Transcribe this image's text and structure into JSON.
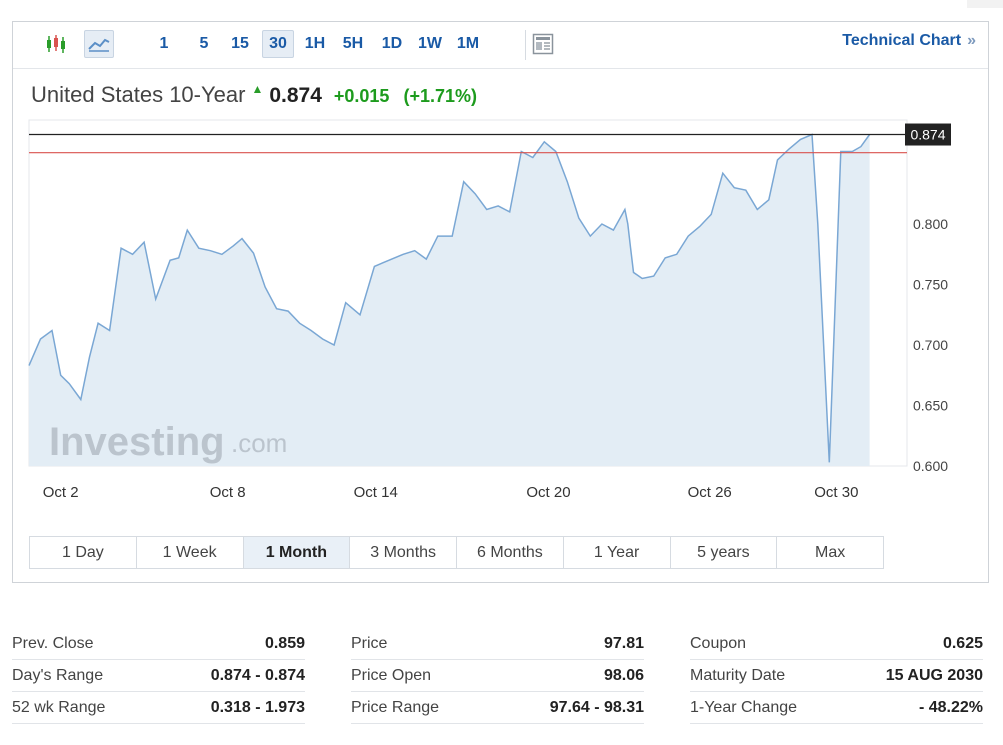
{
  "toolbar": {
    "timeframes": [
      {
        "label": "1",
        "active": false
      },
      {
        "label": "5",
        "active": false
      },
      {
        "label": "15",
        "active": false
      },
      {
        "label": "30",
        "active": true
      },
      {
        "label": "1H",
        "active": false
      },
      {
        "label": "5H",
        "active": false
      },
      {
        "label": "1D",
        "active": false
      },
      {
        "label": "1W",
        "active": false
      },
      {
        "label": "1M",
        "active": false
      }
    ],
    "technical_chart": "Technical Chart",
    "technical_chart_arrow": "»"
  },
  "quote": {
    "instrument": "United States 10-Year",
    "last": "0.874",
    "change": "+0.015",
    "change_pct": "(+1.71%)"
  },
  "colors": {
    "line": "#7aa7d4",
    "area": "#e3edf5",
    "prev_close_line": "#d9534f",
    "last_line": "#222222",
    "up": "#1d9b1d",
    "link": "#1a5aa6"
  },
  "chart_data": {
    "type": "area",
    "watermark": "Investing.com",
    "ylim": [
      0.6,
      0.886
    ],
    "y_ticks": [
      0.6,
      0.65,
      0.7,
      0.75,
      0.8
    ],
    "y_tick_labels": [
      "0.600",
      "0.650",
      "0.700",
      "0.750",
      "0.800"
    ],
    "x_tick_labels": [
      {
        "label": "Oct 2",
        "x": 0.2
      },
      {
        "label": "Oct 8",
        "x": 6
      },
      {
        "label": "Oct 14",
        "x": 11
      },
      {
        "label": "Oct 20",
        "x": 17
      },
      {
        "label": "Oct 26",
        "x": 22.6
      },
      {
        "label": "Oct 30",
        "x": 27
      }
    ],
    "xlim": [
      0,
      30.5
    ],
    "last_value": 0.874,
    "last_value_label": "0.874",
    "prev_close": 0.859,
    "series": [
      {
        "x": [
          0,
          0.4,
          0.8,
          1.1,
          1.4,
          1.8,
          2.1,
          2.4,
          2.8,
          3.2,
          3.6,
          4.0,
          4.4,
          4.9,
          5.2,
          5.5,
          5.9,
          6.3,
          6.7,
          7.1,
          7.4,
          7.8,
          8.2,
          8.6,
          9.0,
          9.4,
          9.8,
          10.2,
          10.6,
          11.0,
          11.5,
          12.0,
          12.5,
          13.0,
          13.4,
          13.8,
          14.2,
          14.7,
          15.1,
          15.5,
          15.9,
          16.3,
          16.7,
          17.1,
          17.5,
          17.9,
          18.3,
          18.7,
          19.1,
          19.5,
          19.9,
          20.3,
          20.7,
          20.8,
          20.9,
          21.0,
          21.3,
          21.7,
          22.1,
          22.5,
          22.9,
          23.3,
          23.7,
          24.1,
          24.5,
          24.9,
          25.3,
          25.7,
          26.0,
          26.4,
          26.8,
          27.2,
          27.4,
          27.8,
          28.2,
          28.6,
          28.9,
          29.2
        ],
        "y": [
          0.683,
          0.705,
          0.712,
          0.675,
          0.668,
          0.655,
          0.69,
          0.718,
          0.712,
          0.78,
          0.775,
          0.785,
          0.738,
          0.77,
          0.772,
          0.795,
          0.78,
          0.778,
          0.775,
          0.782,
          0.788,
          0.776,
          0.748,
          0.73,
          0.728,
          0.718,
          0.712,
          0.705,
          0.7,
          0.735,
          0.725,
          0.765,
          0.77,
          0.775,
          0.778,
          0.771,
          0.79,
          0.79,
          0.835,
          0.825,
          0.812,
          0.815,
          0.81,
          0.86,
          0.855,
          0.868,
          0.86,
          0.835,
          0.805,
          0.79,
          0.8,
          0.795,
          0.812,
          0.8,
          0.78,
          0.76,
          0.755,
          0.757,
          0.772,
          0.775,
          0.79,
          0.798,
          0.808,
          0.842,
          0.83,
          0.828,
          0.812,
          0.82,
          0.853,
          0.862,
          0.87,
          0.874,
          0.8,
          0.603,
          0.86,
          0.86,
          0.864,
          0.874
        ]
      }
    ]
  },
  "ranges": [
    {
      "label": "1 Day",
      "active": false
    },
    {
      "label": "1 Week",
      "active": false
    },
    {
      "label": "1 Month",
      "active": true
    },
    {
      "label": "3 Months",
      "active": false
    },
    {
      "label": "6 Months",
      "active": false
    },
    {
      "label": "1 Year",
      "active": false
    },
    {
      "label": "5 years",
      "active": false
    },
    {
      "label": "Max",
      "active": false
    }
  ],
  "stats": {
    "col1": [
      {
        "k": "Prev. Close",
        "v": "0.859"
      },
      {
        "k": "Day's Range",
        "v": "0.874 - 0.874"
      },
      {
        "k": "52 wk Range",
        "v": "0.318 - 1.973"
      }
    ],
    "col2": [
      {
        "k": "Price",
        "v": "97.81"
      },
      {
        "k": "Price Open",
        "v": "98.06"
      },
      {
        "k": "Price Range",
        "v": "97.64 - 98.31"
      }
    ],
    "col3": [
      {
        "k": "Coupon",
        "v": "0.625"
      },
      {
        "k": "Maturity Date",
        "v": "15 AUG 2030"
      },
      {
        "k": "1-Year Change",
        "v": "- 48.22%"
      }
    ]
  }
}
